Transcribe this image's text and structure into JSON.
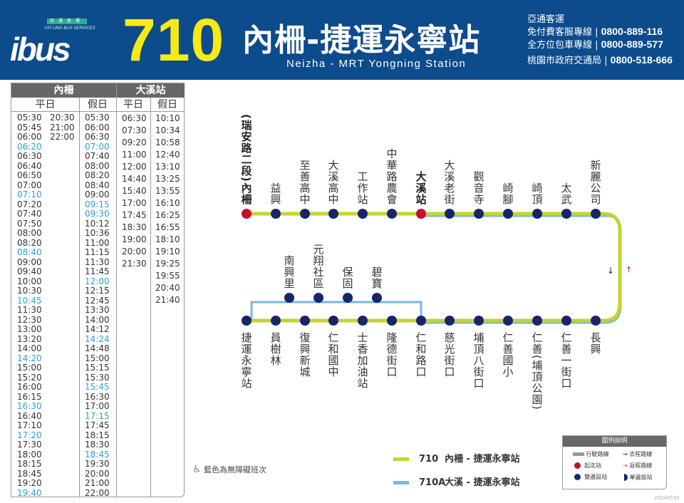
{
  "header": {
    "logo_text": "ibus",
    "logo_tag": "亞通客運",
    "logo_en": "YAT-UNG BUS SERVICES",
    "route_number": "710",
    "title_zh": "內柵-捷運永寧站",
    "title_en": "Neizha - MRT Yongning Station",
    "contacts": [
      {
        "label": "亞通客運",
        "number": ""
      },
      {
        "label": "免付費客服專線",
        "number": "0800-889-116"
      },
      {
        "label": "全方位包車專線",
        "number": "0800-889-577"
      },
      {
        "label": "桃園市政府交通局",
        "number": "0800-518-666"
      }
    ],
    "bg_color": "#0c4b8c",
    "number_color": "#f7ea14"
  },
  "timetable": {
    "groups": [
      "內柵",
      "大溪站"
    ],
    "day_labels": [
      "平日",
      "假日",
      "平日",
      "假日"
    ],
    "neizha_weekday_a": [
      [
        "05:30",
        0
      ],
      [
        "05:45",
        0
      ],
      [
        "06:00",
        0
      ],
      [
        "06:20",
        1
      ],
      [
        "06:30",
        0
      ],
      [
        "06:40",
        0
      ],
      [
        "06:50",
        0
      ],
      [
        "07:00",
        0
      ],
      [
        "07:10",
        1
      ],
      [
        "07:20",
        0
      ],
      [
        "07:40",
        0
      ],
      [
        "07:50",
        0
      ],
      [
        "08:00",
        0
      ],
      [
        "08:20",
        0
      ],
      [
        "08:40",
        1
      ],
      [
        "09:00",
        0
      ],
      [
        "09:40",
        0
      ],
      [
        "10:00",
        0
      ],
      [
        "10:30",
        0
      ],
      [
        "10:45",
        1
      ],
      [
        "11:30",
        0
      ],
      [
        "12:30",
        0
      ],
      [
        "13:00",
        0
      ],
      [
        "13:20",
        0
      ],
      [
        "14:00",
        0
      ],
      [
        "14:20",
        1
      ],
      [
        "15:00",
        0
      ],
      [
        "15:20",
        0
      ],
      [
        "16:00",
        0
      ],
      [
        "16:15",
        0
      ],
      [
        "16:30",
        1
      ],
      [
        "16:40",
        0
      ],
      [
        "17:10",
        0
      ],
      [
        "17:20",
        1
      ],
      [
        "17:30",
        0
      ],
      [
        "18:00",
        0
      ],
      [
        "18:15",
        0
      ],
      [
        "18:45",
        0
      ],
      [
        "19:20",
        0
      ],
      [
        "19:40",
        1
      ]
    ],
    "neizha_weekday_b": [
      [
        "20:30",
        0
      ],
      [
        "21:00",
        0
      ],
      [
        "22:00",
        0
      ]
    ],
    "neizha_holiday": [
      [
        "05:30",
        0
      ],
      [
        "06:00",
        0
      ],
      [
        "06:30",
        0
      ],
      [
        "07:00",
        1
      ],
      [
        "07:40",
        0
      ],
      [
        "08:00",
        0
      ],
      [
        "08:20",
        0
      ],
      [
        "08:40",
        0
      ],
      [
        "09:00",
        0
      ],
      [
        "09:15",
        1
      ],
      [
        "09:30",
        1
      ],
      [
        "10:12",
        0
      ],
      [
        "10:36",
        0
      ],
      [
        "11:00",
        0
      ],
      [
        "11:15",
        0
      ],
      [
        "11:30",
        0
      ],
      [
        "11:45",
        0
      ],
      [
        "12:00",
        1
      ],
      [
        "12:15",
        0
      ],
      [
        "12:45",
        0
      ],
      [
        "13:30",
        0
      ],
      [
        "14:00",
        0
      ],
      [
        "14:12",
        0
      ],
      [
        "14:24",
        1
      ],
      [
        "14:48",
        0
      ],
      [
        "15:00",
        0
      ],
      [
        "15:15",
        0
      ],
      [
        "15:30",
        0
      ],
      [
        "15:45",
        1
      ],
      [
        "16:30",
        0
      ],
      [
        "17:00",
        0
      ],
      [
        "17:15",
        1
      ],
      [
        "17:45",
        0
      ],
      [
        "18:15",
        0
      ],
      [
        "18:30",
        0
      ],
      [
        "18:45",
        1
      ],
      [
        "19:30",
        0
      ],
      [
        "20:00",
        0
      ],
      [
        "21:00",
        0
      ],
      [
        "22:00",
        0
      ]
    ],
    "daxi_weekday": [
      [
        "06:30",
        0
      ],
      [
        "07:30",
        0
      ],
      [
        "09:20",
        0
      ],
      [
        "11:00",
        0
      ],
      [
        "12:00",
        0
      ],
      [
        "14:40",
        0
      ],
      [
        "15:40",
        0
      ],
      [
        "17:00",
        0
      ],
      [
        "17:45",
        0
      ],
      [
        "18:30",
        0
      ],
      [
        "19:00",
        0
      ],
      [
        "20:00",
        0
      ],
      [
        "21:30",
        0
      ]
    ],
    "daxi_holiday": [
      [
        "10:10",
        0
      ],
      [
        "10:34",
        0
      ],
      [
        "10:58",
        0
      ],
      [
        "12:40",
        0
      ],
      [
        "13:10",
        0
      ],
      [
        "13:25",
        0
      ],
      [
        "13:55",
        0
      ],
      [
        "16:10",
        0
      ],
      [
        "16:25",
        0
      ],
      [
        "16:55",
        0
      ],
      [
        "18:10",
        0
      ],
      [
        "19:10",
        0
      ],
      [
        "19:25",
        0
      ],
      [
        "19:55",
        0
      ],
      [
        "20:40",
        0
      ],
      [
        "21:40",
        0
      ]
    ],
    "accessible_color": "#2aa3d0"
  },
  "route_map": {
    "top_stops": [
      {
        "name": "(瑞安路二段)內柵",
        "red": true,
        "bold": true
      },
      {
        "name": "益興"
      },
      {
        "name": "至善高中"
      },
      {
        "name": "大溪高中"
      },
      {
        "name": "工作站"
      },
      {
        "name": "中華路農會"
      },
      {
        "name": "大溪站",
        "red": true,
        "bold": true
      },
      {
        "name": "大溪老街"
      },
      {
        "name": "觀音寺"
      },
      {
        "name": "崎腳"
      },
      {
        "name": "崎頂"
      },
      {
        "name": "太武"
      },
      {
        "name": "新麗公司"
      }
    ],
    "bottom_stops": [
      "捷運永寧站",
      "員樹林",
      "復興新城",
      "仁和國中",
      "士香加油站",
      "隆德街口",
      "仁和路口",
      "慈光街口",
      "埔頂八街口",
      "仁善國小",
      "仁善(埔頂公園)",
      "仁善一街口",
      "長興"
    ],
    "branch_stops": [
      "南興里",
      "元翔社區",
      "保固",
      "碧寶"
    ],
    "arrow_down": "↓",
    "arrow_up": "↑",
    "line_710_color": "#c5d32e",
    "line_710a_color": "#7ab6e0"
  },
  "legend": {
    "routes": [
      {
        "code": "710",
        "name": "內柵 - 捷運永寧站"
      },
      {
        "code": "710A",
        "name": "大溪 - 捷運永寧站"
      }
    ],
    "note": "藍色為無障礙班次",
    "key_title": "圖例說明",
    "key_items": [
      "行駛路線",
      "去程路線",
      "起迄站",
      "返程路線",
      "雙邊設站",
      "單邊設站"
    ],
    "date": "20240530"
  }
}
